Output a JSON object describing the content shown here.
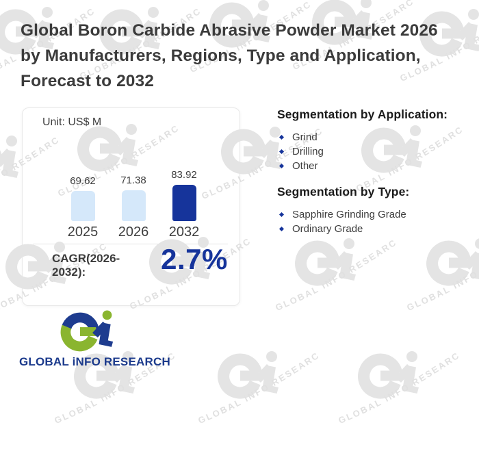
{
  "title": {
    "full": "Global Boron Carbide Abrasive Powder Market 2026 by Manufacturers, Regions, Type and Application, Forecast to 2032",
    "lines": [
      "Global Boron Carbide Abrasive Powder Market 2026",
      "by Manufacturers, Regions, Type and Application,",
      "Forecast to 2032"
    ]
  },
  "chart_data": {
    "type": "bar",
    "title": "Unit: US$ M",
    "unit_label": "Unit: US$ M",
    "categories": [
      "2025",
      "2026",
      "2032"
    ],
    "values": [
      69.62,
      71.38,
      83.92
    ],
    "value_labels": [
      "69.62",
      "71.38",
      "83.92"
    ],
    "bar_colors": [
      "#d5e8fa",
      "#d5e8fa",
      "#16349b"
    ],
    "ylim": [
      0,
      90
    ],
    "grid": false,
    "legend": false,
    "cagr_label": "CAGR(2026-2032):",
    "cagr_value": "2.7%"
  },
  "segmentation_application": {
    "heading": "Segmentation by Application:",
    "items": [
      "Grind",
      "Drilling",
      "Other"
    ]
  },
  "segmentation_type": {
    "heading": "Segmentation by Type:",
    "items": [
      "Sapphire Grinding Grade",
      "Ordinary Grade"
    ]
  },
  "branding": {
    "logo_text": "GLOBAL iNFO RESEARCH",
    "watermark_text": "GLOBAL iNFO RESEARCH"
  },
  "colors": {
    "accent_blue": "#16349b",
    "light_bar_blue": "#d5e8fa",
    "logo_green": "#8ab52f",
    "logo_blue": "#1e3c8f",
    "wordmark_blue": "#1b3a8c",
    "title_text": "#3b3b3b",
    "watermark_gray": "#e2e2e2",
    "card_border": "#e8e8e8"
  }
}
